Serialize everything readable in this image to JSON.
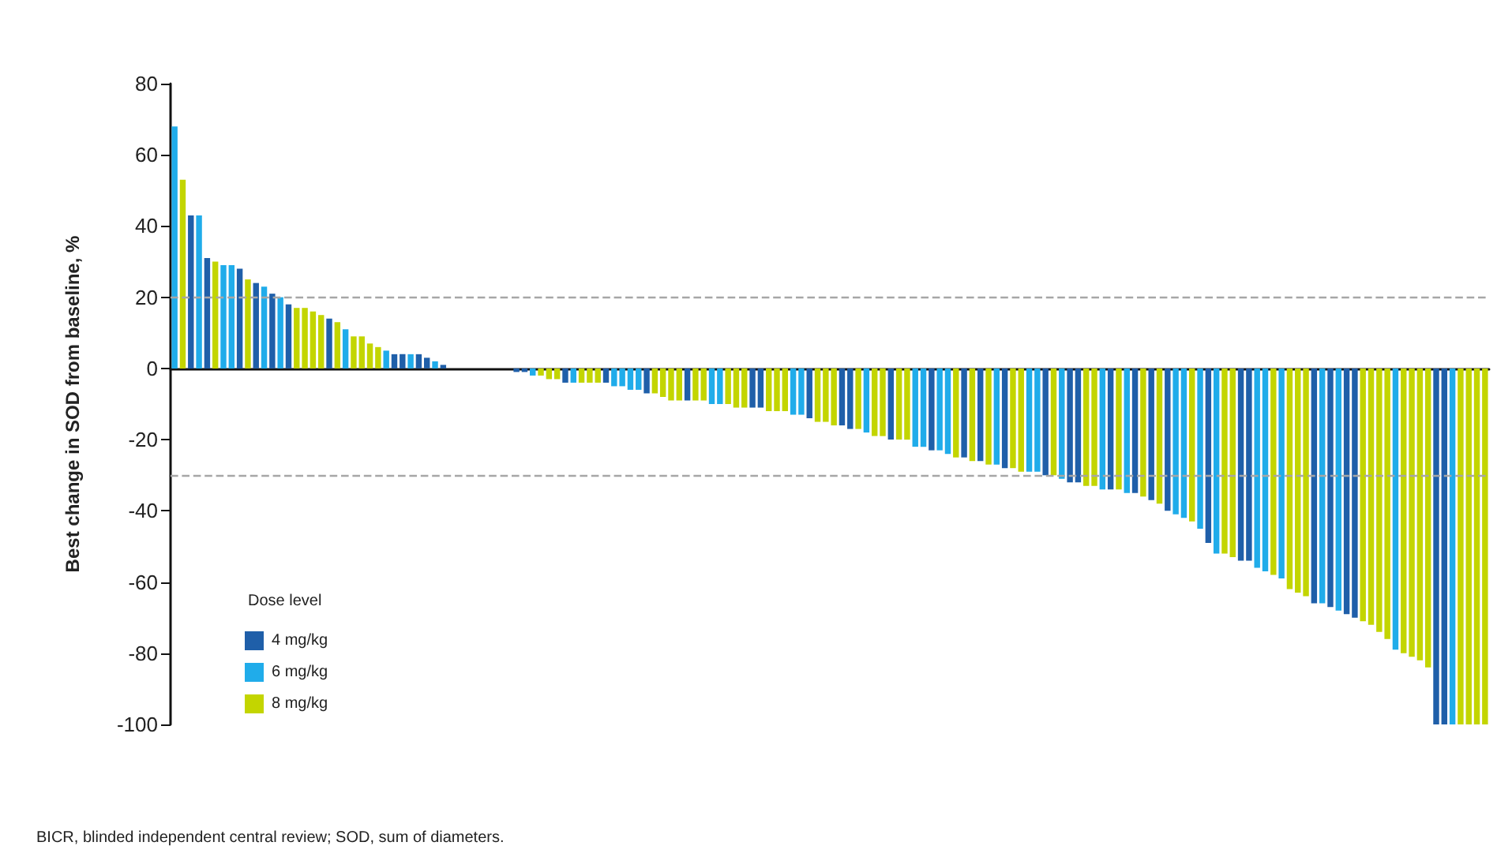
{
  "chart_data": {
    "type": "bar",
    "stacked": true,
    "ylabel": "Best change in SOD from baseline, %",
    "legend_title": "Dose level",
    "annotations": [
      "BICR, blinded independent central review; SOD, sum of diameters."
    ],
    "categories": [
      null,
      null,
      null,
      null,
      null,
      null,
      null,
      null,
      null,
      null,
      null,
      null,
      null,
      null,
      null,
      null,
      null,
      null,
      null,
      null,
      null,
      null,
      null,
      null,
      null,
      null,
      null,
      null,
      null,
      null,
      null,
      null,
      null,
      null,
      null,
      null,
      null,
      null,
      null,
      null,
      null,
      null,
      null,
      null,
      null,
      null,
      null,
      null,
      null,
      null,
      null,
      null,
      null,
      null,
      null,
      null,
      null,
      null,
      null,
      null,
      null,
      null,
      null,
      null,
      null,
      null,
      null,
      null,
      null,
      null,
      null,
      null,
      null,
      null,
      null,
      null,
      null,
      null,
      null,
      null,
      null,
      null,
      null,
      null,
      null,
      null,
      null,
      null,
      null,
      null,
      null,
      null,
      null,
      null,
      null,
      null,
      null,
      null,
      null,
      null,
      null,
      null,
      null,
      null,
      null,
      null,
      null,
      null,
      null,
      null,
      null,
      null,
      null,
      null,
      null,
      null,
      null,
      null,
      null,
      null,
      null,
      null,
      null,
      null,
      null,
      null,
      null,
      null,
      null,
      null,
      null,
      null,
      null,
      null,
      null,
      null,
      null,
      null,
      null,
      null,
      null,
      null,
      null,
      null,
      null,
      null,
      null,
      null,
      null,
      null,
      null,
      null,
      null,
      null,
      null,
      null,
      null,
      null,
      null,
      null,
      null,
      null
    ],
    "series": [
      {
        "name": "4 mg/kg",
        "color": "#1f5fa9",
        "values": [
          null,
          null,
          43,
          null,
          31,
          null,
          null,
          null,
          28,
          null,
          24,
          null,
          21,
          null,
          18,
          null,
          null,
          null,
          null,
          14,
          null,
          null,
          null,
          null,
          null,
          null,
          null,
          4,
          4,
          null,
          4,
          3,
          null,
          1,
          null,
          null,
          null,
          null,
          null,
          null,
          null,
          null,
          -1,
          -1,
          null,
          null,
          null,
          null,
          -4,
          null,
          null,
          null,
          null,
          -4,
          null,
          null,
          null,
          null,
          -7,
          null,
          null,
          null,
          null,
          -9,
          null,
          null,
          null,
          null,
          null,
          null,
          null,
          -11,
          -11,
          null,
          null,
          null,
          null,
          null,
          -14,
          null,
          null,
          null,
          -16,
          -17,
          null,
          null,
          null,
          null,
          -20,
          null,
          null,
          null,
          null,
          -23,
          null,
          null,
          null,
          -25,
          null,
          -26,
          null,
          null,
          -28,
          null,
          null,
          null,
          null,
          -30,
          null,
          null,
          -32,
          -32,
          null,
          null,
          null,
          -34,
          null,
          null,
          -35,
          null,
          -37,
          null,
          -40,
          null,
          null,
          null,
          null,
          -49,
          null,
          null,
          null,
          -54,
          -54,
          null,
          null,
          null,
          null,
          null,
          null,
          null,
          -66,
          null,
          -67,
          null,
          -69,
          -70,
          null,
          null,
          null,
          null,
          null,
          null,
          null,
          null,
          null,
          -100,
          -100,
          null,
          null,
          null,
          null,
          null
        ]
      },
      {
        "name": "6 mg/kg",
        "color": "#20acea",
        "values": [
          68,
          null,
          null,
          43,
          null,
          null,
          29,
          29,
          null,
          null,
          null,
          23,
          null,
          20,
          null,
          null,
          null,
          null,
          null,
          null,
          null,
          11,
          null,
          null,
          null,
          null,
          5,
          null,
          null,
          4,
          null,
          null,
          2,
          null,
          null,
          null,
          null,
          null,
          null,
          null,
          null,
          null,
          null,
          null,
          -2,
          null,
          null,
          null,
          null,
          -4,
          null,
          null,
          null,
          null,
          -5,
          -5,
          -6,
          -6,
          null,
          null,
          null,
          null,
          null,
          null,
          null,
          null,
          -10,
          -10,
          null,
          null,
          null,
          null,
          null,
          null,
          null,
          null,
          -13,
          -13,
          null,
          null,
          null,
          null,
          null,
          null,
          null,
          -18,
          null,
          null,
          null,
          null,
          null,
          -22,
          -22,
          null,
          -23,
          -24,
          null,
          null,
          null,
          null,
          null,
          -27,
          null,
          null,
          null,
          -29,
          -29,
          null,
          null,
          -31,
          null,
          null,
          null,
          null,
          -34,
          null,
          null,
          -35,
          null,
          null,
          null,
          null,
          null,
          -41,
          -42,
          null,
          -45,
          null,
          -52,
          null,
          null,
          null,
          null,
          -56,
          -57,
          null,
          -59,
          null,
          null,
          null,
          null,
          -66,
          null,
          -68,
          null,
          null,
          null,
          null,
          null,
          null,
          -79,
          null,
          null,
          null,
          null,
          null,
          null,
          -100,
          null,
          null,
          null,
          null
        ]
      },
      {
        "name": "8 mg/kg",
        "color": "#c3d500",
        "values": [
          null,
          53,
          null,
          null,
          null,
          30,
          null,
          null,
          null,
          25,
          null,
          null,
          null,
          null,
          null,
          17,
          17,
          16,
          15,
          null,
          13,
          null,
          9,
          9,
          7,
          6,
          null,
          null,
          null,
          null,
          null,
          null,
          null,
          null,
          null,
          null,
          null,
          null,
          null,
          null,
          null,
          null,
          null,
          null,
          null,
          -2,
          -3,
          -3,
          null,
          null,
          -4,
          -4,
          -4,
          null,
          null,
          null,
          null,
          null,
          null,
          -7,
          -8,
          -9,
          -9,
          null,
          -9,
          -9,
          null,
          null,
          -10,
          -11,
          -11,
          null,
          null,
          -12,
          -12,
          -12,
          null,
          null,
          null,
          -15,
          -15,
          -16,
          null,
          null,
          -17,
          null,
          -19,
          -19,
          null,
          -20,
          -20,
          null,
          null,
          null,
          null,
          null,
          -25,
          null,
          -26,
          null,
          -27,
          null,
          null,
          -28,
          -29,
          null,
          null,
          null,
          -30,
          null,
          null,
          null,
          -33,
          -33,
          null,
          null,
          -34,
          null,
          null,
          -36,
          null,
          -38,
          null,
          null,
          null,
          -43,
          null,
          null,
          null,
          -52,
          -53,
          null,
          null,
          null,
          null,
          -58,
          null,
          -62,
          -63,
          -64,
          null,
          null,
          null,
          null,
          null,
          null,
          -71,
          -72,
          -74,
          -76,
          null,
          -80,
          -81,
          -82,
          -84,
          null,
          null,
          null,
          -100,
          -100,
          -100,
          -100
        ]
      }
    ],
    "ylim": [
      -100,
      80
    ],
    "yticks": [
      -100,
      -80,
      -60,
      -40,
      -20,
      0,
      20,
      40,
      60,
      80
    ],
    "tick_labels": "y",
    "grid": false,
    "legend": "bottom left",
    "ref_lines": [
      {
        "axis": "y",
        "value": 20,
        "color": "#a6a6a6",
        "line_style": "dashed"
      },
      {
        "axis": "y",
        "value": -30,
        "color": "#a6a6a6",
        "line_style": "dashed"
      }
    ]
  }
}
